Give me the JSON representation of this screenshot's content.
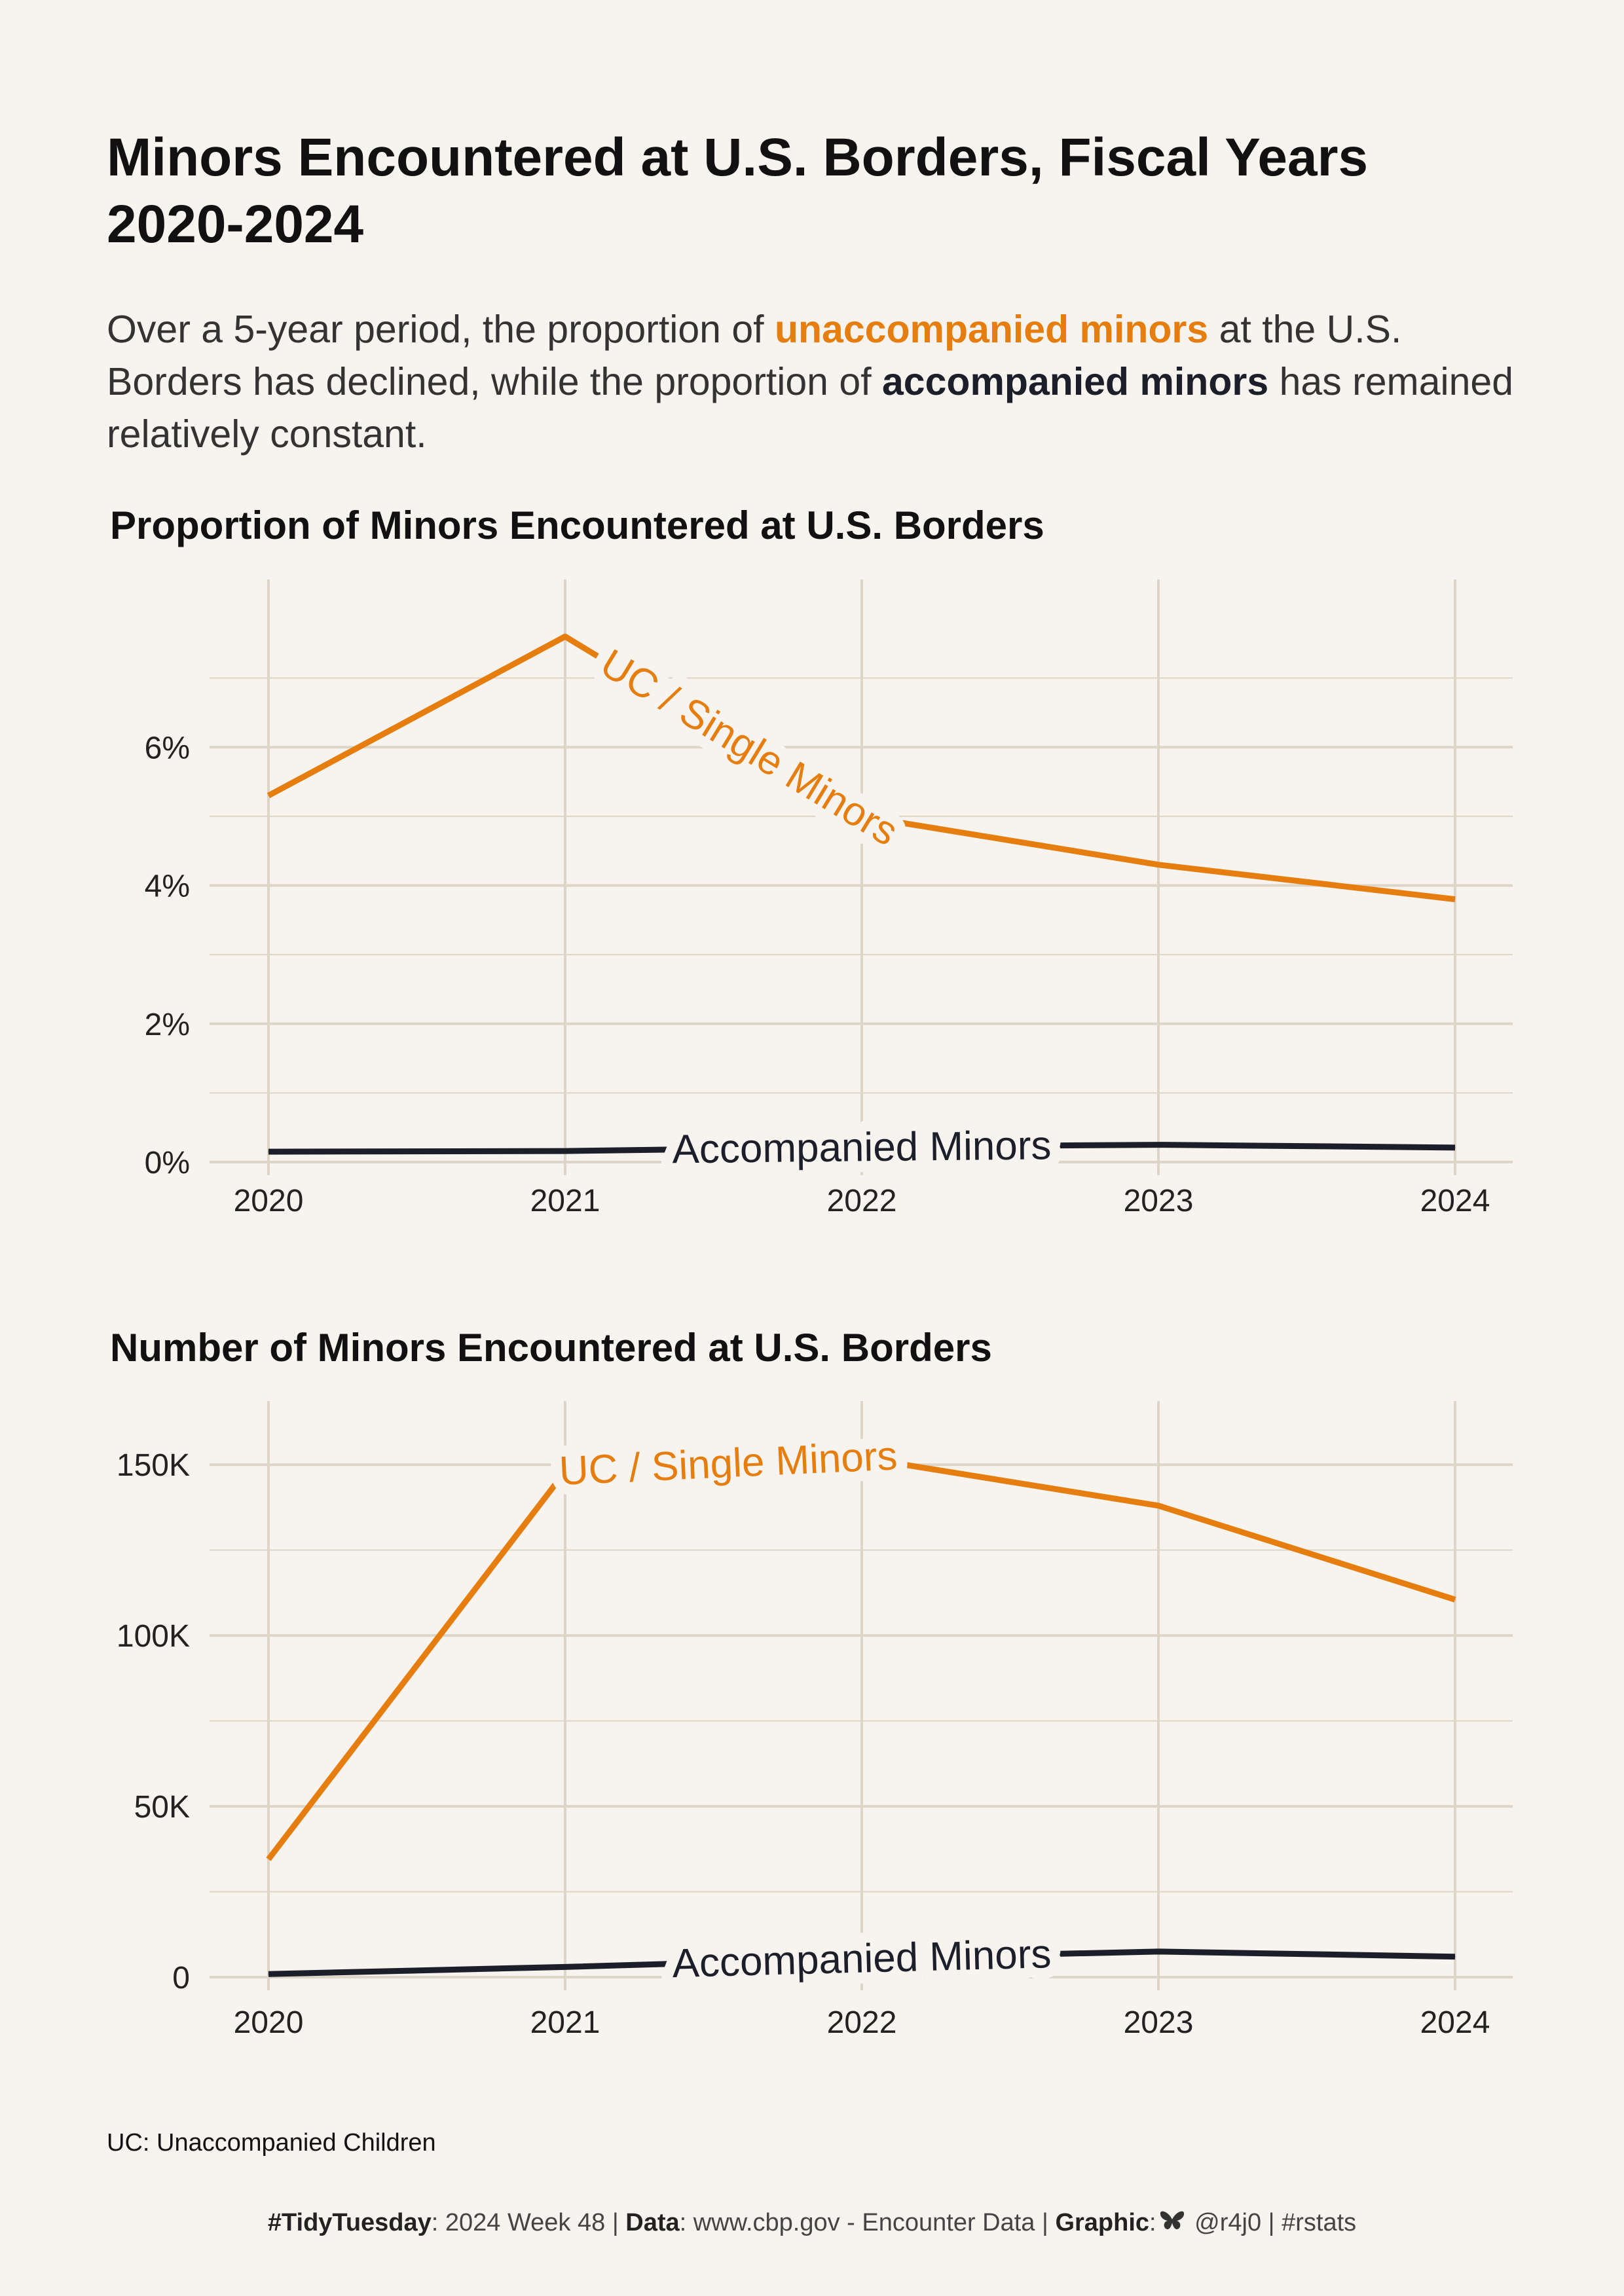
{
  "title": "Minors Encountered at U.S. Borders, Fiscal Years 2020-2024",
  "subtitle": {
    "part1": "Over a 5-year period, the proportion of ",
    "highlight1": "unaccompanied minors",
    "part2": " at the U.S. Borders has declined, while the proportion of ",
    "highlight2": "accompanied minors",
    "part3": " has remained relatively constant."
  },
  "colors": {
    "background": "#f7f3ee",
    "uc": "#e67e0f",
    "accompanied": "#1c1f2a",
    "grid": "#ddd6c8"
  },
  "chart_data": [
    {
      "type": "line",
      "title": "Proportion of Minors Encountered at U.S. Borders",
      "x": [
        2020,
        2021,
        2022,
        2023,
        2024
      ],
      "x_ticks": [
        "2020",
        "2021",
        "2022",
        "2023",
        "2024"
      ],
      "y_ticks": [
        0,
        2,
        4,
        6
      ],
      "y_tick_labels": [
        "0%",
        "2%",
        "4%",
        "6%"
      ],
      "ylim": [
        0,
        8
      ],
      "grid": true,
      "series": [
        {
          "name": "UC / Single Minors",
          "color": "#e67e0f",
          "values": [
            5.3,
            7.6,
            5.0,
            4.3,
            3.8
          ]
        },
        {
          "name": "Accompanied Minors",
          "color": "#1c1f2a",
          "values": [
            0.15,
            0.16,
            0.22,
            0.25,
            0.21
          ]
        }
      ]
    },
    {
      "type": "line",
      "title": "Number of Minors Encountered at U.S. Borders",
      "x": [
        2020,
        2021,
        2022,
        2023,
        2024
      ],
      "x_ticks": [
        "2020",
        "2021",
        "2022",
        "2023",
        "2024"
      ],
      "y_ticks": [
        0,
        50000,
        100000,
        150000
      ],
      "y_tick_labels": [
        "0",
        "50K",
        "100K",
        "150K"
      ],
      "ylim": [
        0,
        160000
      ],
      "grid": true,
      "series": [
        {
          "name": "UC / Single Minors",
          "color": "#e67e0f",
          "values": [
            34500,
            148000,
            152000,
            138000,
            110500
          ]
        },
        {
          "name": "Accompanied Minors",
          "color": "#1c1f2a",
          "values": [
            900,
            3000,
            5500,
            7500,
            6000
          ]
        }
      ]
    }
  ],
  "note": "UC: Unaccompanied Children",
  "footer": {
    "tag": "#TidyTuesday",
    "week": ": 2024 Week 48 | ",
    "data_label": "Data",
    "data_text": ": www.cbp.gov - Encounter Data | ",
    "graphic_label": "Graphic",
    "graphic_sep": ":",
    "icon": "butterfly-icon",
    "handle": " @r4j0 | #rstats"
  }
}
